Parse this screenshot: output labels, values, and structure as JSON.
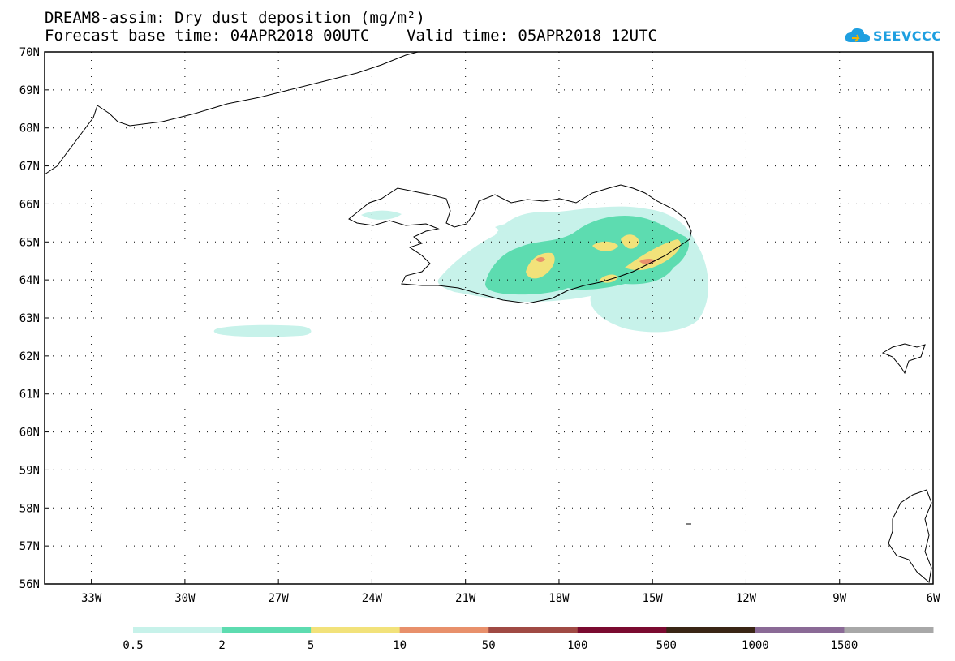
{
  "title": {
    "line1": "DREAM8-assim: Dry dust deposition (mg/m²)",
    "line2": "Forecast base time: 04APR2018 00UTC    Valid time: 05APR2018 12UTC"
  },
  "logo": {
    "text": "SEEVCCC",
    "icon": "cloud-icon",
    "color": "#1e9fe0"
  },
  "map": {
    "lat_range": [
      56,
      70
    ],
    "lon_range": [
      -34.5,
      -6
    ],
    "lat_ticks": [
      "70N",
      "69N",
      "68N",
      "67N",
      "66N",
      "65N",
      "64N",
      "63N",
      "62N",
      "61N",
      "60N",
      "59N",
      "58N",
      "57N",
      "56N"
    ],
    "lat_values": [
      70,
      69,
      68,
      67,
      66,
      65,
      64,
      63,
      62,
      61,
      60,
      59,
      58,
      57,
      56
    ],
    "lon_ticks": [
      "33W",
      "30W",
      "27W",
      "24W",
      "21W",
      "18W",
      "15W",
      "12W",
      "9W",
      "6W"
    ],
    "lon_values": [
      -33,
      -30,
      -27,
      -24,
      -21,
      -18,
      -15,
      -12,
      -9,
      -6
    ],
    "grid": "dotted"
  },
  "colorbar": {
    "labels": [
      "0.5",
      "2",
      "5",
      "10",
      "50",
      "100",
      "500",
      "1000",
      "1500"
    ],
    "colors": [
      "#c7f2ea",
      "#5ddcb0",
      "#f2e27a",
      "#e8906b",
      "#a04a44",
      "#7a0a30",
      "#3a2616",
      "#8a6a96",
      "#a8a8a8"
    ]
  }
}
